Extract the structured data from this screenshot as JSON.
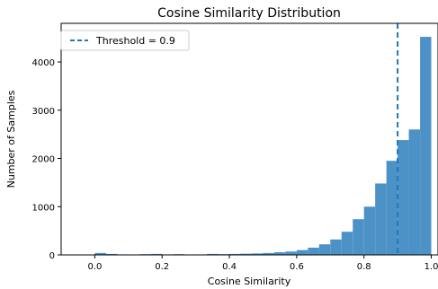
{
  "chart_data": {
    "type": "bar",
    "title": "Cosine Similarity Distribution",
    "xlabel": "Cosine Similarity",
    "ylabel": "Number of Samples",
    "xlim": [
      -0.1,
      1.02
    ],
    "ylim": [
      0,
      4800
    ],
    "x_ticks": [
      0.0,
      0.2,
      0.4,
      0.6,
      0.8,
      1.0
    ],
    "x_tick_labels": [
      "0.0",
      "0.2",
      "0.4",
      "0.6",
      "0.8",
      "1.0"
    ],
    "y_ticks": [
      0,
      1000,
      2000,
      3000,
      4000
    ],
    "y_tick_labels": [
      "0",
      "1000",
      "2000",
      "3000",
      "4000"
    ],
    "grid": false,
    "bin_width": 0.0333,
    "bins": [
      {
        "start": 0.0,
        "count": 40
      },
      {
        "start": 0.0333,
        "count": 20
      },
      {
        "start": 0.0667,
        "count": 10
      },
      {
        "start": 0.1,
        "count": 5
      },
      {
        "start": 0.1333,
        "count": 15
      },
      {
        "start": 0.1667,
        "count": 20
      },
      {
        "start": 0.2,
        "count": 10
      },
      {
        "start": 0.2333,
        "count": 15
      },
      {
        "start": 0.2667,
        "count": 5
      },
      {
        "start": 0.3,
        "count": 10
      },
      {
        "start": 0.3333,
        "count": 20
      },
      {
        "start": 0.3667,
        "count": 15
      },
      {
        "start": 0.4,
        "count": 20
      },
      {
        "start": 0.4333,
        "count": 25
      },
      {
        "start": 0.4667,
        "count": 30
      },
      {
        "start": 0.5,
        "count": 40
      },
      {
        "start": 0.5333,
        "count": 55
      },
      {
        "start": 0.5667,
        "count": 70
      },
      {
        "start": 0.6,
        "count": 100
      },
      {
        "start": 0.6333,
        "count": 150
      },
      {
        "start": 0.6667,
        "count": 220
      },
      {
        "start": 0.7,
        "count": 320
      },
      {
        "start": 0.7333,
        "count": 480
      },
      {
        "start": 0.7667,
        "count": 740
      },
      {
        "start": 0.8,
        "count": 1000
      },
      {
        "start": 0.8333,
        "count": 1480
      },
      {
        "start": 0.8667,
        "count": 1950
      },
      {
        "start": 0.9,
        "count": 2380
      },
      {
        "start": 0.9333,
        "count": 2600
      },
      {
        "start": 0.9667,
        "count": 4520
      }
    ],
    "threshold": {
      "value": 0.9,
      "label": "Threshold = 0.9",
      "style": "dashed"
    },
    "legend_position": "upper-left",
    "colors": {
      "bars": "#4c92c7",
      "threshold": "#1f77b4"
    }
  }
}
